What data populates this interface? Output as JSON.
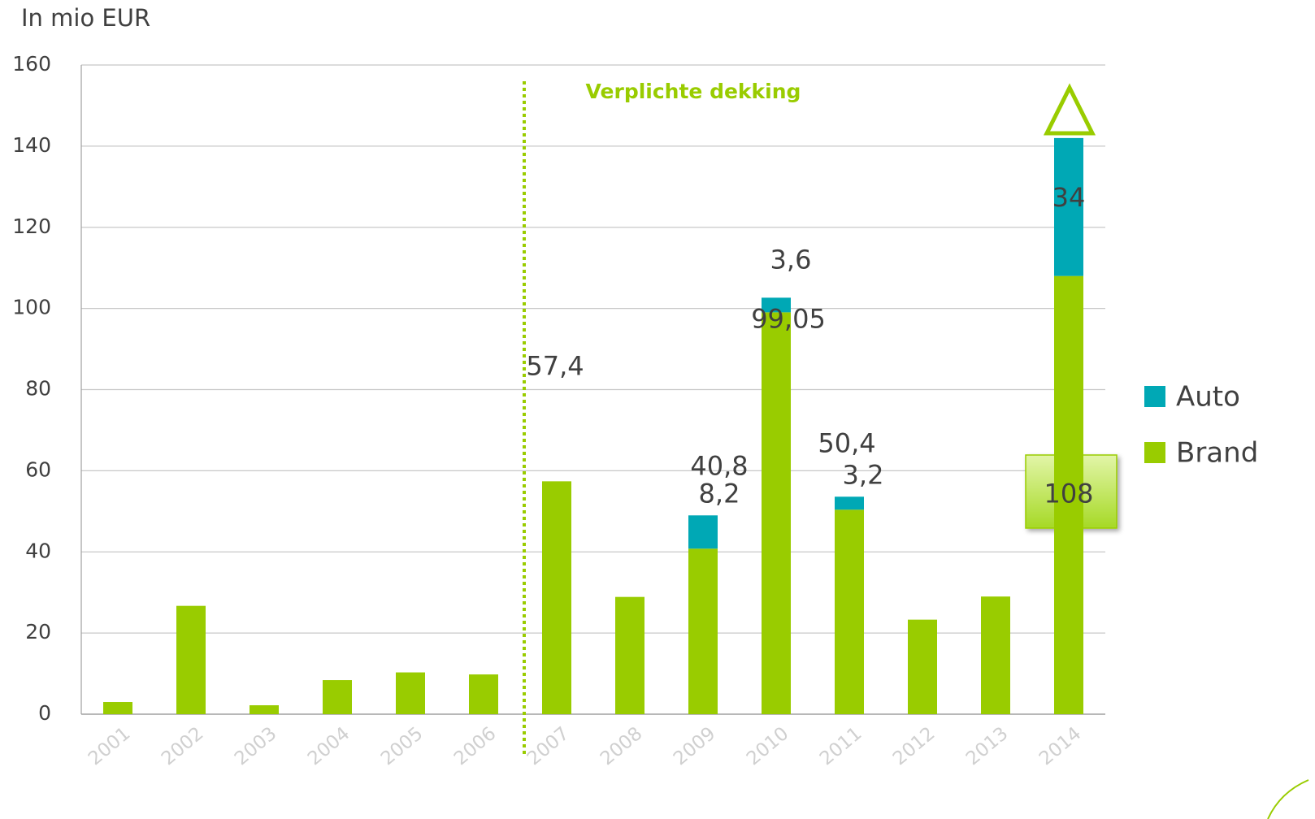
{
  "chart_data": {
    "type": "stacked_bar",
    "y_label": "In mio EUR",
    "annotation": "Verplichte dekking",
    "categories": [
      "2001",
      "2002",
      "2003",
      "2004",
      "2005",
      "2006",
      "2007",
      "2008",
      "2009",
      "2010",
      "2011",
      "2012",
      "2013",
      "2014"
    ],
    "series": [
      {
        "name": "Brand",
        "color": "#99cc00",
        "values": [
          3,
          26.7,
          2.2,
          8.4,
          10.3,
          9.8,
          57.4,
          28.9,
          40.8,
          99.05,
          50.4,
          23.3,
          29,
          108
        ],
        "value_labels": [
          null,
          null,
          null,
          null,
          null,
          null,
          "57,4",
          null,
          "40,8",
          "99,05",
          "50,4",
          null,
          null,
          "108"
        ]
      },
      {
        "name": "Auto",
        "color": "#00a8b5",
        "values": [
          null,
          null,
          null,
          null,
          null,
          null,
          null,
          null,
          8.2,
          3.6,
          3.2,
          null,
          null,
          34
        ],
        "value_labels": [
          null,
          null,
          null,
          null,
          null,
          null,
          null,
          null,
          "8,2",
          "3,6",
          "3,2",
          null,
          null,
          "34"
        ]
      }
    ],
    "ylim": [
      0,
      160
    ],
    "yticks": [
      0,
      20,
      40,
      60,
      80,
      100,
      120,
      140,
      160
    ],
    "grid": true,
    "legend": "right"
  }
}
